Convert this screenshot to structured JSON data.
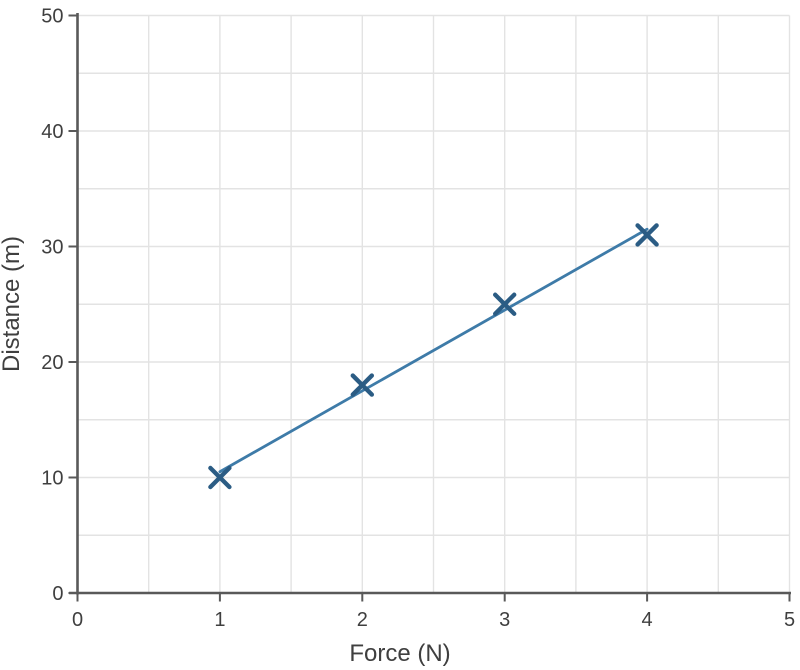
{
  "chart_data": {
    "type": "scatter",
    "x": [
      1,
      2,
      3,
      4
    ],
    "y": [
      10,
      18,
      25,
      31
    ],
    "marker": "x",
    "line": "linear-trendline",
    "trendline": {
      "slope": 7,
      "intercept": 3.5,
      "x_start": 1,
      "x_end": 4
    },
    "title": "",
    "xlabel": "Force (N)",
    "ylabel": "Distance (m)",
    "xlim": [
      0,
      5
    ],
    "ylim": [
      0,
      50
    ],
    "x_tick_values": [
      0,
      1,
      2,
      3,
      4,
      5
    ],
    "x_tick_labels": [
      "0",
      "1",
      "2",
      "3",
      "4",
      "5"
    ],
    "y_tick_values": [
      0,
      10,
      20,
      30,
      40,
      50
    ],
    "y_tick_labels": [
      "0",
      "10",
      "20",
      "30",
      "40",
      "50"
    ],
    "x_minor_grid_step": 0.5,
    "y_minor_grid_step": 5,
    "grid": true,
    "legend": false
  },
  "colors": {
    "background": "#FFFFFF",
    "marker": "#2B5C84",
    "trendline": "#3E7BA8",
    "gridline": "#E3E3E3",
    "axis": "#595959",
    "tick": "#595959",
    "tick_label": "#3F3F3F",
    "axis_title": "#3F3F3F"
  }
}
